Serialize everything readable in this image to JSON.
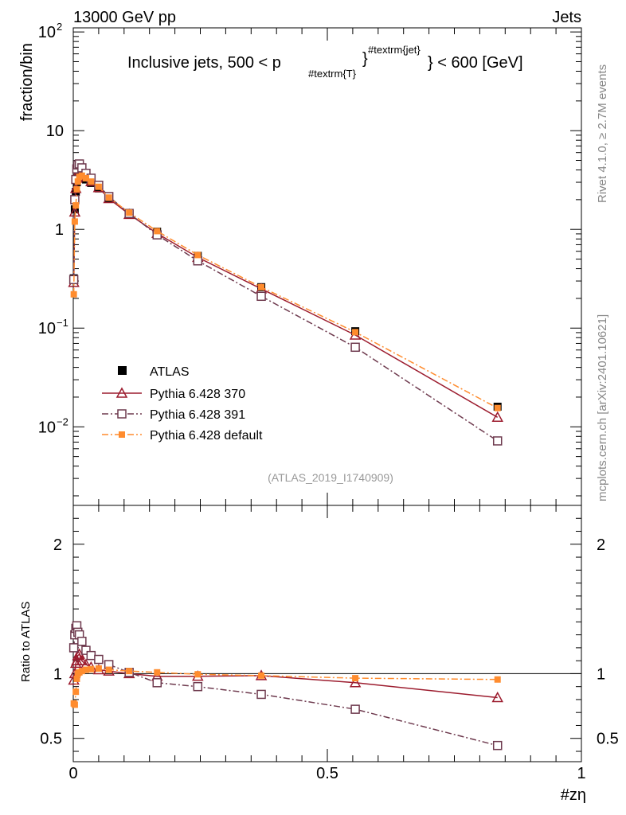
{
  "header": {
    "energy": "13000 GeV pp",
    "process": "Jets",
    "title": "Inclusive jets, 500 < p",
    "title_sub": "#textrm{T}",
    "title_sup": "#textrm{jet}",
    "title_tail": "} < 600 [GeV]"
  },
  "side": {
    "rivet": "Rivet 4.1.0, ≥ 2.7M events",
    "mcplots": "mcplots.cern.ch [arXiv:2401.10621]"
  },
  "watermark": "(ATLAS_2019_I1740909)",
  "colors": {
    "atlas": "#000000",
    "p370": "#9c1c2e",
    "p391": "#6e3a4e",
    "pdef": "#ff8c2e"
  },
  "chart_data": [
    {
      "type": "line",
      "yscale": "log",
      "ylabel": "fraction/bin",
      "xlim": [
        0,
        1
      ],
      "ylim": [
        0.0016,
        110
      ],
      "y_ticks": [
        {
          "value": 100,
          "base": "10",
          "exp": "2"
        },
        {
          "value": 10,
          "base": "10",
          "exp": ""
        },
        {
          "value": 1,
          "base": "1",
          "exp": ""
        },
        {
          "value": 0.1,
          "base": "10",
          "exp": "−1"
        },
        {
          "value": 0.01,
          "base": "10",
          "exp": "−2"
        }
      ],
      "series": [
        {
          "name": "ATLAS",
          "key": "atlas",
          "x": [
            0.001,
            0.003,
            0.005,
            0.007,
            0.009,
            0.012,
            0.017,
            0.025,
            0.035,
            0.05,
            0.07,
            0.11,
            0.165,
            0.245,
            0.37,
            0.555,
            0.835
          ],
          "y": [
            0.32,
            1.6,
            2.4,
            3.0,
            3.3,
            3.5,
            3.4,
            3.2,
            2.95,
            2.6,
            2.05,
            1.45,
            0.95,
            0.54,
            0.26,
            0.093,
            0.016
          ]
        },
        {
          "name": "Pythia 6.428 370",
          "key": "p370",
          "x": [
            0.001,
            0.003,
            0.005,
            0.007,
            0.009,
            0.012,
            0.017,
            0.025,
            0.035,
            0.05,
            0.07,
            0.11,
            0.165,
            0.245,
            0.37,
            0.555,
            0.835
          ],
          "y": [
            0.29,
            1.5,
            2.6,
            3.3,
            3.7,
            4.0,
            3.7,
            3.4,
            3.05,
            2.65,
            2.05,
            1.42,
            0.91,
            0.52,
            0.25,
            0.085,
            0.0125
          ]
        },
        {
          "name": "Pythia 6.428 391",
          "key": "p391",
          "x": [
            0.001,
            0.003,
            0.005,
            0.007,
            0.009,
            0.012,
            0.017,
            0.025,
            0.035,
            0.05,
            0.07,
            0.11,
            0.165,
            0.245,
            0.37,
            0.555,
            0.835
          ],
          "y": [
            0.31,
            2.0,
            3.2,
            4.1,
            4.5,
            4.6,
            4.2,
            3.7,
            3.3,
            2.8,
            2.15,
            1.45,
            0.88,
            0.48,
            0.21,
            0.064,
            0.0072
          ]
        },
        {
          "name": "Pythia 6.428 default",
          "key": "pdef",
          "x": [
            0.001,
            0.003,
            0.005,
            0.007,
            0.009,
            0.012,
            0.017,
            0.025,
            0.035,
            0.05,
            0.07,
            0.11,
            0.165,
            0.245,
            0.37,
            0.555,
            0.835
          ],
          "y": [
            0.22,
            1.2,
            1.75,
            2.55,
            3.05,
            3.4,
            3.5,
            3.3,
            3.05,
            2.7,
            2.1,
            1.48,
            0.96,
            0.55,
            0.26,
            0.091,
            0.0155
          ]
        }
      ]
    },
    {
      "type": "line",
      "ylabel": "Ratio to ATLAS",
      "xlabel": "#zη",
      "xlim": [
        0,
        1
      ],
      "ylim": [
        0.32,
        2.3
      ],
      "x_ticks": [
        {
          "value": 0,
          "label": "0"
        },
        {
          "value": 0.5,
          "label": "0.5"
        },
        {
          "value": 1,
          "label": "1"
        }
      ],
      "y_ticks": [
        {
          "value": 0.5,
          "label": "0.5"
        },
        {
          "value": 1,
          "label": "1"
        },
        {
          "value": 2,
          "label": "2"
        }
      ],
      "series": [
        {
          "name": "Pythia 6.428 370",
          "key": "p370",
          "x": [
            0.001,
            0.003,
            0.005,
            0.007,
            0.009,
            0.012,
            0.017,
            0.025,
            0.035,
            0.05,
            0.07,
            0.11,
            0.165,
            0.245,
            0.37,
            0.555,
            0.835
          ],
          "y": [
            0.95,
            1.0,
            1.08,
            1.1,
            1.14,
            1.15,
            1.1,
            1.07,
            1.05,
            1.03,
            1.02,
            1.0,
            0.98,
            0.98,
            0.985,
            0.93,
            0.815
          ]
        },
        {
          "name": "Pythia 6.428 391",
          "key": "p391",
          "x": [
            0.001,
            0.003,
            0.005,
            0.007,
            0.009,
            0.012,
            0.017,
            0.025,
            0.035,
            0.05,
            0.07,
            0.11,
            0.165,
            0.245,
            0.37,
            0.555,
            0.835
          ],
          "y": [
            1.2,
            1.3,
            1.35,
            1.37,
            1.32,
            1.3,
            1.25,
            1.18,
            1.14,
            1.11,
            1.07,
            1.01,
            0.93,
            0.9,
            0.84,
            0.725,
            0.445
          ]
        },
        {
          "name": "Pythia 6.428 default",
          "key": "pdef",
          "x": [
            0.001,
            0.003,
            0.005,
            0.007,
            0.009,
            0.012,
            0.017,
            0.025,
            0.035,
            0.05,
            0.07,
            0.11,
            0.165,
            0.245,
            0.37,
            0.555,
            0.835
          ],
          "y": [
            0.77,
            0.76,
            0.86,
            0.96,
            1.0,
            1.01,
            1.02,
            1.03,
            1.035,
            1.04,
            1.03,
            1.02,
            1.01,
            0.995,
            0.985,
            0.965,
            0.955
          ]
        }
      ]
    }
  ]
}
